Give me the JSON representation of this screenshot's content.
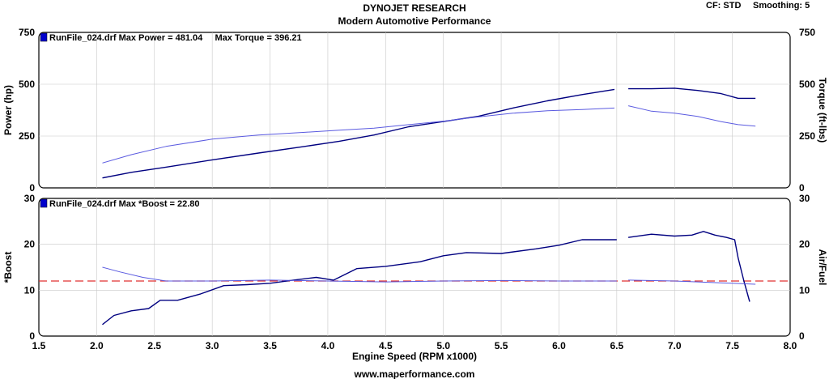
{
  "header": {
    "company": "DYNOJET RESEARCH",
    "shop": "Modern Automotive Performance",
    "correction": "CF: STD",
    "smoothing": "Smoothing: 5"
  },
  "footer": {
    "url": "www.maperformance.com"
  },
  "colors": {
    "main_trace": "#000080",
    "secondary_trace": "#5a5ae0",
    "target_line": "#e03030",
    "legend_marker": "#0000cc"
  },
  "chart_data": [
    {
      "type": "line",
      "title": "",
      "legend": "RunFile_024.drf Max Power = 481.04     Max Torque = 396.21",
      "xlabel": "Engine Speed (RPM x1000)",
      "ylabel": "Power (hp)",
      "ylabel_right": "Torque (ft-lbs)",
      "xlim": [
        1.5,
        8.0
      ],
      "ylim": [
        0,
        750
      ],
      "ylim_right": [
        0,
        750
      ],
      "x_ticks": [
        "1.5",
        "2.0",
        "2.5",
        "3.0",
        "3.5",
        "4.0",
        "4.5",
        "5.0",
        "5.5",
        "6.0",
        "6.5",
        "7.0",
        "7.5",
        "8.0"
      ],
      "y_ticks": [
        "0",
        "250",
        "500",
        "750"
      ],
      "y_ticks_right": [
        "0",
        "250",
        "500",
        "750"
      ],
      "grid": true,
      "series": [
        {
          "role": "power",
          "segments": [
            {
              "x": [
                2.05,
                2.3,
                2.6,
                3.0,
                3.4,
                3.8,
                4.1,
                4.4,
                4.7,
                5.0,
                5.3,
                5.6,
                5.9,
                6.2,
                6.48
              ],
              "y": [
                48,
                75,
                100,
                135,
                168,
                200,
                225,
                255,
                295,
                320,
                345,
                385,
                420,
                450,
                475
              ]
            },
            {
              "x": [
                6.6,
                6.8,
                7.0,
                7.2,
                7.4,
                7.55,
                7.7
              ],
              "y": [
                478,
                478,
                481,
                470,
                455,
                432,
                432
              ]
            }
          ]
        },
        {
          "role": "torque",
          "segments": [
            {
              "x": [
                2.05,
                2.3,
                2.6,
                3.0,
                3.4,
                3.8,
                4.1,
                4.4,
                4.7,
                5.0,
                5.3,
                5.6,
                5.9,
                6.2,
                6.48
              ],
              "y": [
                120,
                160,
                200,
                235,
                255,
                268,
                278,
                288,
                305,
                322,
                342,
                360,
                372,
                378,
                385
              ]
            },
            {
              "x": [
                6.6,
                6.8,
                7.0,
                7.2,
                7.4,
                7.55,
                7.7
              ],
              "y": [
                396,
                370,
                360,
                345,
                320,
                305,
                298
              ]
            }
          ]
        }
      ]
    },
    {
      "type": "line",
      "title": "",
      "legend": "RunFile_024.drf Max *Boost = 22.80",
      "xlabel": "Engine Speed (RPM x1000)",
      "ylabel": "*Boost",
      "ylabel_right": "Air/Fuel",
      "xlim": [
        1.5,
        8.0
      ],
      "ylim": [
        0,
        30
      ],
      "ylim_right": [
        0,
        30
      ],
      "x_ticks": [
        "1.5",
        "2.0",
        "2.5",
        "3.0",
        "3.5",
        "4.0",
        "4.5",
        "5.0",
        "5.5",
        "6.0",
        "6.5",
        "7.0",
        "7.5",
        "8.0"
      ],
      "y_ticks": [
        "0",
        "10",
        "20",
        "30"
      ],
      "y_ticks_right": [
        "0",
        "10",
        "20",
        "30"
      ],
      "grid": true,
      "target_af": 12,
      "series": [
        {
          "role": "boost",
          "segments": [
            {
              "x": [
                2.05,
                2.15,
                2.3,
                2.45,
                2.55,
                2.7,
                2.9,
                3.1,
                3.3,
                3.5,
                3.7,
                3.9,
                4.05,
                4.25,
                4.5,
                4.8,
                5.0,
                5.2,
                5.5,
                5.8,
                6.0,
                6.2,
                6.5
              ],
              "y": [
                2.5,
                4.5,
                5.5,
                6.0,
                7.8,
                7.8,
                9.2,
                11.0,
                11.2,
                11.5,
                12.2,
                12.8,
                12.2,
                14.7,
                15.2,
                16.2,
                17.5,
                18.2,
                18.0,
                19.0,
                19.8,
                21.0,
                21.0
              ]
            },
            {
              "x": [
                6.6,
                6.8,
                7.0,
                7.15,
                7.25,
                7.35,
                7.45,
                7.52,
                7.55,
                7.6,
                7.65
              ],
              "y": [
                21.5,
                22.2,
                21.8,
                22.0,
                22.8,
                22.0,
                21.5,
                21.0,
                17.0,
                12.0,
                7.5
              ]
            }
          ]
        },
        {
          "role": "air_fuel",
          "segments": [
            {
              "x": [
                2.05,
                2.2,
                2.4,
                2.6,
                3.0,
                3.5,
                4.0,
                4.5,
                5.0,
                5.5,
                6.0,
                6.5
              ],
              "y": [
                15.0,
                14.0,
                12.8,
                12.0,
                12.0,
                12.2,
                12.0,
                11.8,
                12.0,
                12.1,
                12.0,
                12.0
              ]
            },
            {
              "x": [
                6.6,
                7.0,
                7.5,
                7.7
              ],
              "y": [
                12.2,
                12.0,
                11.5,
                11.3
              ]
            }
          ]
        }
      ]
    }
  ]
}
